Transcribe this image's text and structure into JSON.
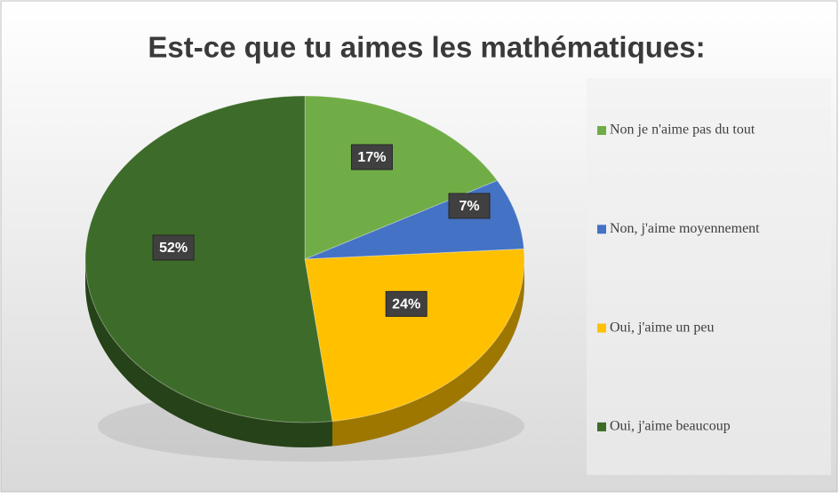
{
  "chart_data": {
    "type": "pie",
    "title": "Est-ce que tu aimes les mathématiques:",
    "categories": [
      "Non je n'aime pas du tout",
      "Non, j'aime moyennement",
      "Oui, j'aime un peu",
      "Oui, j'aime beaucoup"
    ],
    "values": [
      17,
      7,
      24,
      52
    ],
    "value_labels": [
      "17%",
      "7%",
      "24%",
      "52%"
    ],
    "colors": [
      "#70ad47",
      "#4472c4",
      "#ffc000",
      "#3d6b29"
    ],
    "legend": "right"
  }
}
